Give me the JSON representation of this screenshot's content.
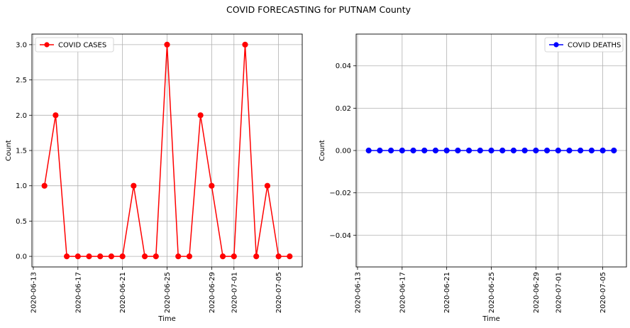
{
  "figure": {
    "suptitle": "COVID FORECASTING for PUTNAM County"
  },
  "chart_data": [
    {
      "type": "line",
      "title": "",
      "xlabel": "Time",
      "ylabel": "Count",
      "x": [
        "2020-06-14",
        "2020-06-15",
        "2020-06-16",
        "2020-06-17",
        "2020-06-18",
        "2020-06-19",
        "2020-06-20",
        "2020-06-21",
        "2020-06-22",
        "2020-06-23",
        "2020-06-24",
        "2020-06-25",
        "2020-06-26",
        "2020-06-27",
        "2020-06-28",
        "2020-06-29",
        "2020-06-30",
        "2020-07-01",
        "2020-07-02",
        "2020-07-03",
        "2020-07-04",
        "2020-07-05",
        "2020-07-06"
      ],
      "series": [
        {
          "name": "COVID CASES",
          "color": "#ff0000",
          "marker": "circle",
          "values": [
            1,
            2,
            0,
            0,
            0,
            0,
            0,
            0,
            1,
            0,
            0,
            3,
            0,
            0,
            2,
            1,
            0,
            0,
            3,
            0,
            1,
            0,
            0
          ]
        }
      ],
      "xlim": [
        "2020-06-12 21:00",
        "2020-07-07 03:00"
      ],
      "ylim": [
        -0.15,
        3.15
      ],
      "yticks": [
        0.0,
        0.5,
        1.0,
        1.5,
        2.0,
        2.5,
        3.0
      ],
      "ytick_labels": [
        "0.0",
        "0.5",
        "1.0",
        "1.5",
        "2.0",
        "2.5",
        "3.0"
      ],
      "xticks": [
        "2020-06-13",
        "2020-06-17",
        "2020-06-21",
        "2020-06-25",
        "2020-06-29",
        "2020-07-01",
        "2020-07-05"
      ],
      "grid": true,
      "legend_position": "upper-left"
    },
    {
      "type": "line",
      "title": "",
      "xlabel": "Time",
      "ylabel": "Count",
      "x": [
        "2020-06-14",
        "2020-06-15",
        "2020-06-16",
        "2020-06-17",
        "2020-06-18",
        "2020-06-19",
        "2020-06-20",
        "2020-06-21",
        "2020-06-22",
        "2020-06-23",
        "2020-06-24",
        "2020-06-25",
        "2020-06-26",
        "2020-06-27",
        "2020-06-28",
        "2020-06-29",
        "2020-06-30",
        "2020-07-01",
        "2020-07-02",
        "2020-07-03",
        "2020-07-04",
        "2020-07-05",
        "2020-07-06"
      ],
      "series": [
        {
          "name": "COVID DEATHS",
          "color": "#0000ff",
          "marker": "circle",
          "values": [
            0,
            0,
            0,
            0,
            0,
            0,
            0,
            0,
            0,
            0,
            0,
            0,
            0,
            0,
            0,
            0,
            0,
            0,
            0,
            0,
            0,
            0,
            0
          ]
        }
      ],
      "xlim": [
        "2020-06-12 21:00",
        "2020-07-07 03:00"
      ],
      "ylim": [
        -0.055,
        0.055
      ],
      "yticks": [
        -0.04,
        -0.02,
        0.0,
        0.02,
        0.04
      ],
      "ytick_labels": [
        "−0.04",
        "−0.02",
        "0.00",
        "0.02",
        "0.04"
      ],
      "xticks": [
        "2020-06-13",
        "2020-06-17",
        "2020-06-21",
        "2020-06-25",
        "2020-06-29",
        "2020-07-01",
        "2020-07-05"
      ],
      "grid": true,
      "legend_position": "upper-right"
    }
  ]
}
